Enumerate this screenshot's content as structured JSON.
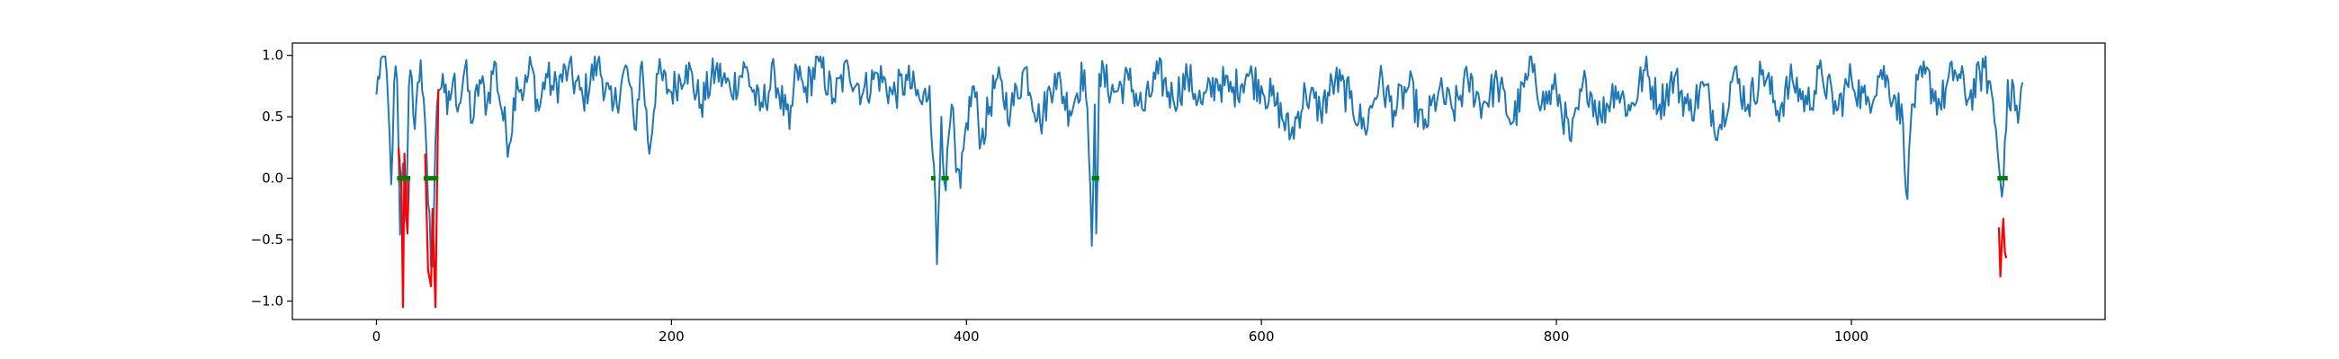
{
  "chart_data": {
    "type": "line",
    "title": "",
    "xlabel": "",
    "ylabel": "",
    "xlim": [
      -57,
      1172
    ],
    "ylim": [
      -1.15,
      1.1
    ],
    "x_ticks": [
      0,
      200,
      400,
      600,
      800,
      1000
    ],
    "y_ticks": [
      -1.0,
      -0.5,
      0.0,
      0.5,
      1.0
    ],
    "x_tick_labels": [
      "0",
      "200",
      "400",
      "600",
      "800",
      "1000"
    ],
    "y_tick_labels": [
      "−1.0",
      "−0.5",
      "0.0",
      "0.5",
      "1.0"
    ],
    "grid": false,
    "legend": "none",
    "colors": {
      "signal": "#1f77b4",
      "anomaly": "#ff0000",
      "marker": "#008000"
    },
    "signal": {
      "n_points": 1117,
      "keypoints": [
        [
          0,
          0.68
        ],
        [
          3,
          0.97
        ],
        [
          6,
          0.99
        ],
        [
          8,
          0.6
        ],
        [
          10,
          -0.05
        ],
        [
          12,
          0.78
        ],
        [
          14,
          0.8
        ],
        [
          16,
          -0.46
        ],
        [
          18,
          0.12
        ],
        [
          20,
          -0.35
        ],
        [
          22,
          0.75
        ],
        [
          24,
          0.82
        ],
        [
          26,
          0.4
        ],
        [
          28,
          0.78
        ],
        [
          30,
          0.96
        ],
        [
          32,
          0.65
        ],
        [
          35,
          -0.2
        ],
        [
          38,
          -0.78
        ],
        [
          40,
          0.3
        ],
        [
          42,
          0.72
        ],
        [
          45,
          0.85
        ],
        [
          48,
          0.52
        ],
        [
          52,
          0.8
        ],
        [
          56,
          0.6
        ],
        [
          60,
          0.9
        ],
        [
          65,
          0.45
        ],
        [
          70,
          0.8
        ],
        [
          75,
          0.6
        ],
        [
          80,
          0.95
        ],
        [
          85,
          0.55
        ],
        [
          90,
          0.27
        ],
        [
          95,
          0.82
        ],
        [
          100,
          0.7
        ],
        [
          105,
          0.92
        ],
        [
          110,
          0.55
        ],
        [
          115,
          0.85
        ],
        [
          120,
          0.72
        ],
        [
          130,
          0.88
        ],
        [
          140,
          0.65
        ],
        [
          150,
          0.95
        ],
        [
          160,
          0.55
        ],
        [
          170,
          0.9
        ],
        [
          175,
          0.4
        ],
        [
          180,
          0.95
        ],
        [
          185,
          0.2
        ],
        [
          190,
          0.85
        ],
        [
          200,
          0.7
        ],
        [
          210,
          0.92
        ],
        [
          220,
          0.6
        ],
        [
          230,
          0.88
        ],
        [
          240,
          0.72
        ],
        [
          250,
          0.9
        ],
        [
          260,
          0.55
        ],
        [
          270,
          0.85
        ],
        [
          280,
          0.4
        ],
        [
          285,
          0.9
        ],
        [
          290,
          0.7
        ],
        [
          300,
          0.95
        ],
        [
          310,
          0.65
        ],
        [
          320,
          0.9
        ],
        [
          330,
          0.7
        ],
        [
          340,
          0.85
        ],
        [
          350,
          0.68
        ],
        [
          360,
          0.8
        ],
        [
          370,
          0.6
        ],
        [
          375,
          0.75
        ],
        [
          378,
          0.1
        ],
        [
          380,
          -0.7
        ],
        [
          383,
          0.5
        ],
        [
          386,
          -0.1
        ],
        [
          390,
          0.6
        ],
        [
          393,
          0.05
        ],
        [
          396,
          -0.08
        ],
        [
          400,
          0.45
        ],
        [
          405,
          0.75
        ],
        [
          410,
          0.3
        ],
        [
          420,
          0.8
        ],
        [
          430,
          0.55
        ],
        [
          440,
          0.9
        ],
        [
          450,
          0.45
        ],
        [
          460,
          0.85
        ],
        [
          470,
          0.55
        ],
        [
          480,
          0.88
        ],
        [
          483,
          0.2
        ],
        [
          485,
          -0.55
        ],
        [
          487,
          0.6
        ],
        [
          488,
          -0.45
        ],
        [
          490,
          0.85
        ],
        [
          500,
          0.7
        ],
        [
          510,
          0.8
        ],
        [
          520,
          0.55
        ],
        [
          530,
          0.85
        ],
        [
          540,
          0.65
        ],
        [
          550,
          0.82
        ],
        [
          560,
          0.6
        ],
        [
          570,
          0.8
        ],
        [
          580,
          0.7
        ],
        [
          590,
          0.85
        ],
        [
          600,
          0.75
        ],
        [
          610,
          0.6
        ],
        [
          620,
          0.35
        ],
        [
          630,
          0.7
        ],
        [
          640,
          0.55
        ],
        [
          650,
          0.8
        ],
        [
          660,
          0.65
        ],
        [
          670,
          0.4
        ],
        [
          680,
          0.8
        ],
        [
          690,
          0.55
        ],
        [
          700,
          0.75
        ],
        [
          710,
          0.4
        ],
        [
          720,
          0.7
        ],
        [
          730,
          0.55
        ],
        [
          740,
          0.8
        ],
        [
          750,
          0.6
        ],
        [
          760,
          0.78
        ],
        [
          770,
          0.45
        ],
        [
          780,
          0.8
        ],
        [
          785,
          0.93
        ],
        [
          790,
          0.6
        ],
        [
          800,
          0.72
        ],
        [
          810,
          0.3
        ],
        [
          820,
          0.8
        ],
        [
          830,
          0.5
        ],
        [
          840,
          0.75
        ],
        [
          850,
          0.55
        ],
        [
          860,
          0.88
        ],
        [
          870,
          0.6
        ],
        [
          880,
          0.82
        ],
        [
          890,
          0.55
        ],
        [
          900,
          0.75
        ],
        [
          910,
          0.4
        ],
        [
          920,
          0.85
        ],
        [
          930,
          0.6
        ],
        [
          940,
          0.88
        ],
        [
          950,
          0.55
        ],
        [
          960,
          0.8
        ],
        [
          970,
          0.6
        ],
        [
          980,
          0.85
        ],
        [
          990,
          0.55
        ],
        [
          1000,
          0.82
        ],
        [
          1010,
          0.6
        ],
        [
          1020,
          0.88
        ],
        [
          1030,
          0.65
        ],
        [
          1035,
          0.45
        ],
        [
          1038,
          -0.17
        ],
        [
          1041,
          0.6
        ],
        [
          1050,
          0.85
        ],
        [
          1060,
          0.6
        ],
        [
          1070,
          0.88
        ],
        [
          1080,
          0.65
        ],
        [
          1090,
          0.9
        ],
        [
          1095,
          0.7
        ],
        [
          1098,
          0.4
        ],
        [
          1100,
          0.1
        ],
        [
          1102,
          -0.15
        ],
        [
          1104,
          0.3
        ],
        [
          1106,
          0.8
        ],
        [
          1108,
          0.55
        ],
        [
          1110,
          0.75
        ],
        [
          1113,
          0.45
        ],
        [
          1116,
          0.78
        ]
      ]
    },
    "anomaly_segments": [
      {
        "name": "segment-1",
        "points": [
          [
            15,
            0.25
          ],
          [
            17,
            -0.1
          ],
          [
            18,
            -1.05
          ],
          [
            19,
            0.2
          ],
          [
            20,
            -0.25
          ],
          [
            21,
            -0.45
          ],
          [
            22,
            0.0
          ]
        ]
      },
      {
        "name": "segment-2",
        "points": [
          [
            33,
            0.2
          ],
          [
            35,
            -0.75
          ],
          [
            37,
            -0.88
          ],
          [
            38,
            -0.25
          ],
          [
            40,
            -1.05
          ],
          [
            42,
            0.72
          ]
        ]
      },
      {
        "name": "segment-3",
        "points": [
          [
            1100,
            -0.4
          ],
          [
            1101,
            -0.8
          ],
          [
            1102,
            -0.52
          ],
          [
            1103,
            -0.33
          ],
          [
            1104,
            -0.6
          ],
          [
            1105,
            -0.65
          ]
        ]
      }
    ],
    "markers": {
      "y": 0.0,
      "segments": [
        [
          14,
          23
        ],
        [
          32,
          42
        ],
        [
          376,
          379
        ],
        [
          383,
          388
        ],
        [
          485,
          490
        ],
        [
          1099,
          1106
        ]
      ]
    }
  }
}
